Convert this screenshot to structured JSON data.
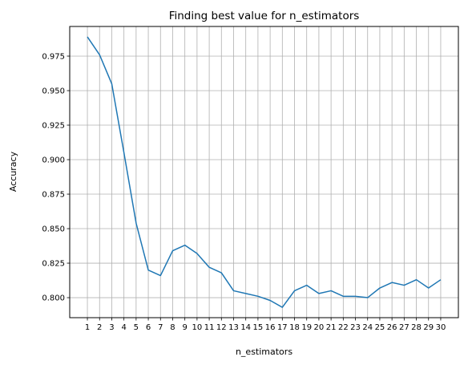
{
  "chart_data": {
    "type": "line",
    "title": "Finding best value for n_estimators",
    "xlabel": "n_estimators",
    "ylabel": "Accuracy",
    "x": [
      1,
      2,
      3,
      4,
      5,
      6,
      7,
      8,
      9,
      10,
      11,
      12,
      13,
      14,
      15,
      16,
      17,
      18,
      19,
      20,
      21,
      22,
      23,
      24,
      25,
      26,
      27,
      28,
      29,
      30
    ],
    "series": [
      {
        "values": [
          0.989,
          0.976,
          0.955,
          0.905,
          0.854,
          0.82,
          0.816,
          0.834,
          0.838,
          0.832,
          0.822,
          0.818,
          0.805,
          0.803,
          0.801,
          0.798,
          0.793,
          0.805,
          0.809,
          0.803,
          0.805,
          0.801,
          0.801,
          0.8,
          0.807,
          0.811,
          0.809,
          0.813,
          0.807,
          0.813
        ],
        "color": "#1f77b4"
      }
    ],
    "xticks": [
      "1",
      "2",
      "3",
      "4",
      "5",
      "6",
      "7",
      "8",
      "9",
      "10",
      "11",
      "12",
      "13",
      "14",
      "15",
      "16",
      "17",
      "18",
      "19",
      "20",
      "21",
      "22",
      "23",
      "24",
      "25",
      "26",
      "27",
      "28",
      "29",
      "30"
    ],
    "yticks": [
      "0.800",
      "0.825",
      "0.850",
      "0.875",
      "0.900",
      "0.925",
      "0.950",
      "0.975"
    ],
    "xlim": [
      -0.45,
      31.45
    ],
    "ylim": [
      0.7855,
      0.9965
    ],
    "grid": true,
    "legend": "none"
  }
}
